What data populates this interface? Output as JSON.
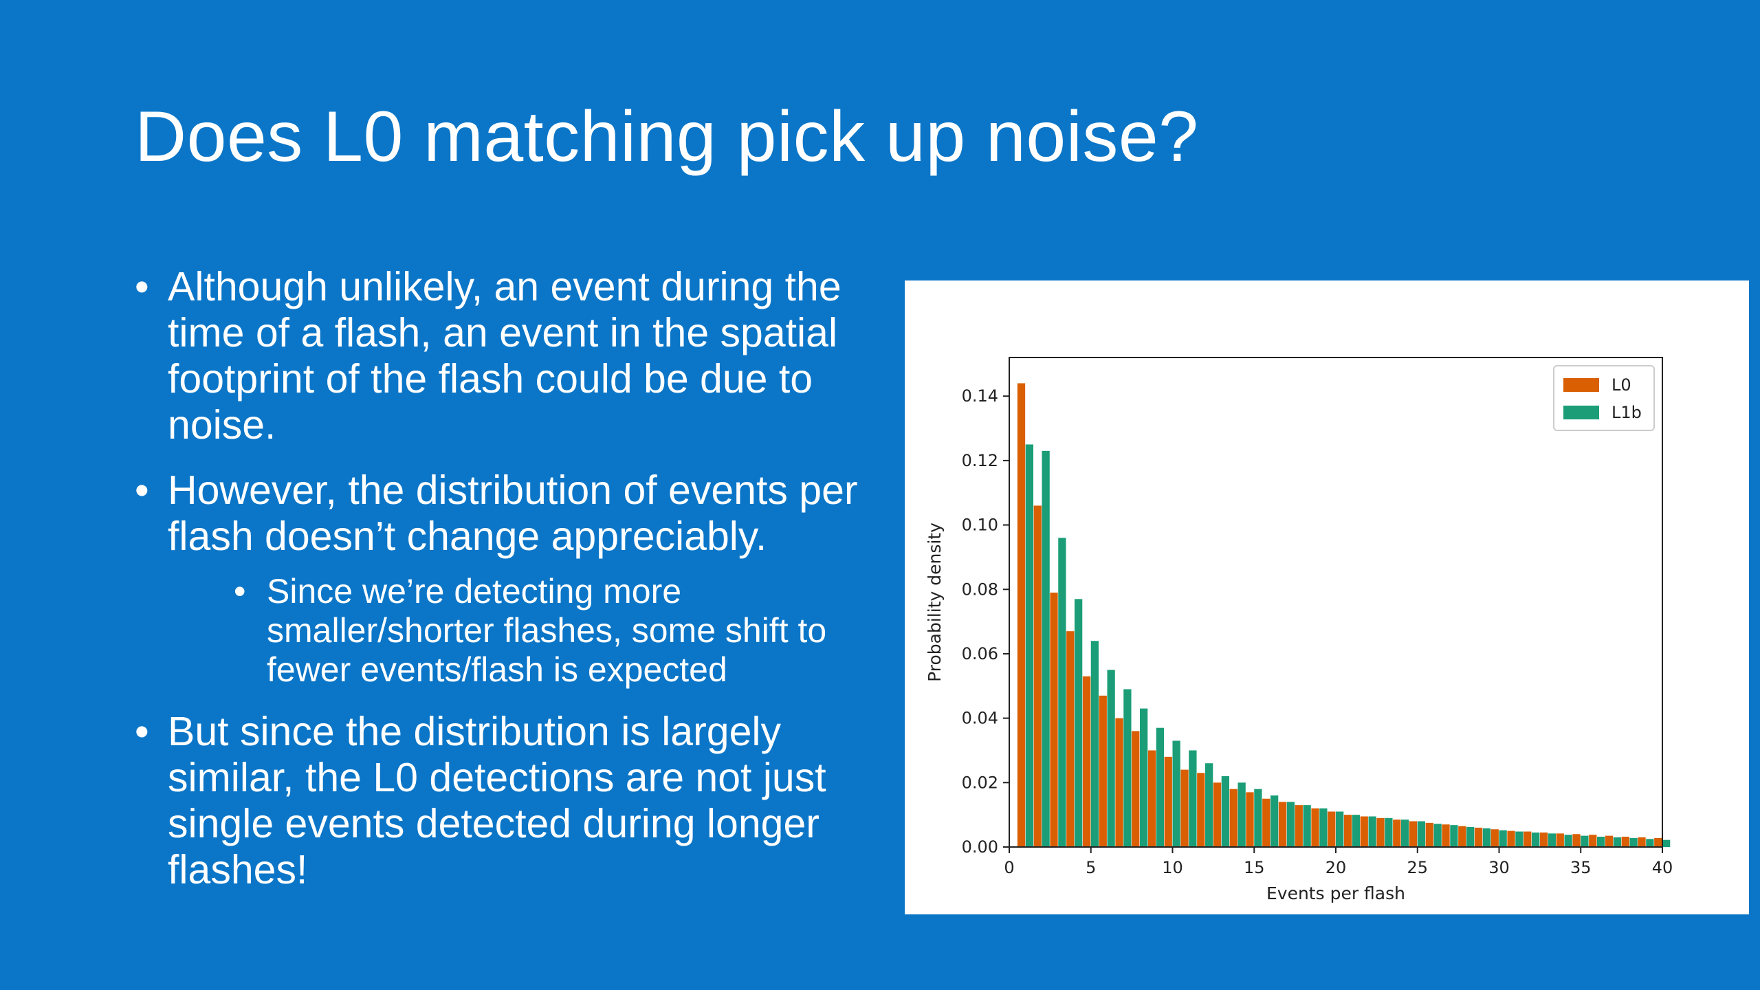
{
  "slide": {
    "title": "Does L0 matching pick up noise?",
    "bullets": [
      {
        "text": "Although unlikely, an event during the time of a flash, an event in the spatial footprint of the flash could be due to noise."
      },
      {
        "text": "However, the distribution of events per flash doesn’t change appreciably.",
        "sub": "Since we’re detecting more smaller/shorter flashes, some shift to fewer events/flash is expected"
      },
      {
        "text": "But since the distribution is largely similar, the L0 detections are not just single events detected during longer flashes!"
      }
    ]
  },
  "colors": {
    "background": "#0B76C8",
    "L0": "#D95F02",
    "L1b": "#1B9E77"
  },
  "chart_data": {
    "type": "bar",
    "xlabel": "Events per flash",
    "ylabel": "Probability density",
    "xlim": [
      0,
      40
    ],
    "ylim": [
      0,
      0.152
    ],
    "x_ticks": [
      0,
      5,
      10,
      15,
      20,
      25,
      30,
      35,
      40
    ],
    "x_tick_labels": [
      "0",
      "5",
      "10",
      "15",
      "20",
      "25",
      "30",
      "35",
      "40"
    ],
    "y_ticks": [
      0.0,
      0.02,
      0.04,
      0.06,
      0.08,
      0.1,
      0.12,
      0.14
    ],
    "y_tick_labels": [
      "0.00",
      "0.02",
      "0.04",
      "0.06",
      "0.08",
      "0.10",
      "0.12",
      "0.14"
    ],
    "legend_position": "top-right",
    "bins": [
      1,
      2,
      3,
      4,
      5,
      6,
      7,
      8,
      9,
      10,
      11,
      12,
      13,
      14,
      15,
      16,
      17,
      18,
      19,
      20,
      21,
      22,
      23,
      24,
      25,
      26,
      27,
      28,
      29,
      30,
      31,
      32,
      33,
      34,
      35,
      36,
      37,
      38,
      39,
      40
    ],
    "series": [
      {
        "name": "L0",
        "values": [
          0.144,
          0.106,
          0.079,
          0.067,
          0.053,
          0.047,
          0.04,
          0.036,
          0.03,
          0.028,
          0.024,
          0.023,
          0.02,
          0.018,
          0.017,
          0.015,
          0.014,
          0.013,
          0.012,
          0.011,
          0.01,
          0.0095,
          0.009,
          0.0085,
          0.008,
          0.0075,
          0.007,
          0.0065,
          0.006,
          0.0055,
          0.005,
          0.0048,
          0.0045,
          0.0042,
          0.004,
          0.0038,
          0.0035,
          0.0032,
          0.003,
          0.0028
        ]
      },
      {
        "name": "L1b",
        "values": [
          0.125,
          0.123,
          0.096,
          0.077,
          0.064,
          0.055,
          0.049,
          0.043,
          0.037,
          0.033,
          0.03,
          0.026,
          0.022,
          0.02,
          0.018,
          0.016,
          0.014,
          0.013,
          0.012,
          0.011,
          0.01,
          0.0095,
          0.009,
          0.0085,
          0.008,
          0.0072,
          0.0068,
          0.0062,
          0.0058,
          0.0052,
          0.0048,
          0.0045,
          0.0042,
          0.0038,
          0.0035,
          0.0032,
          0.003,
          0.0028,
          0.0025,
          0.0022
        ]
      }
    ]
  }
}
